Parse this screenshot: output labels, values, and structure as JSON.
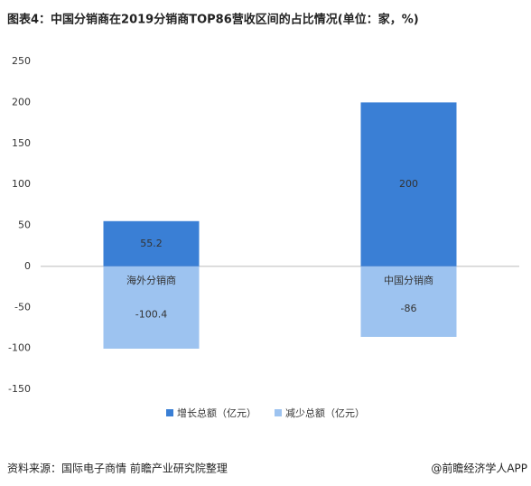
{
  "chart_data": {
    "type": "bar",
    "title": "图表4：中国分销商在2019分销商TOP86营收区间的占比情况(单位：家，%)",
    "categories": [
      "海外分销商",
      "中国分销商"
    ],
    "series": [
      {
        "name": "增长总额（亿元）",
        "color": "#3a7fd5",
        "values": [
          55.2,
          200
        ]
      },
      {
        "name": "减少总额（亿元）",
        "color": "#9dc3f0",
        "values": [
          -100.4,
          -86
        ]
      }
    ],
    "ylim": [
      -150,
      250
    ],
    "yticks": [
      -150,
      -100,
      -50,
      0,
      50,
      100,
      150,
      200,
      250
    ],
    "source": "资料来源：国际电子商情 前瞻产业研究院整理",
    "credit": "@前瞻经济学人APP"
  }
}
